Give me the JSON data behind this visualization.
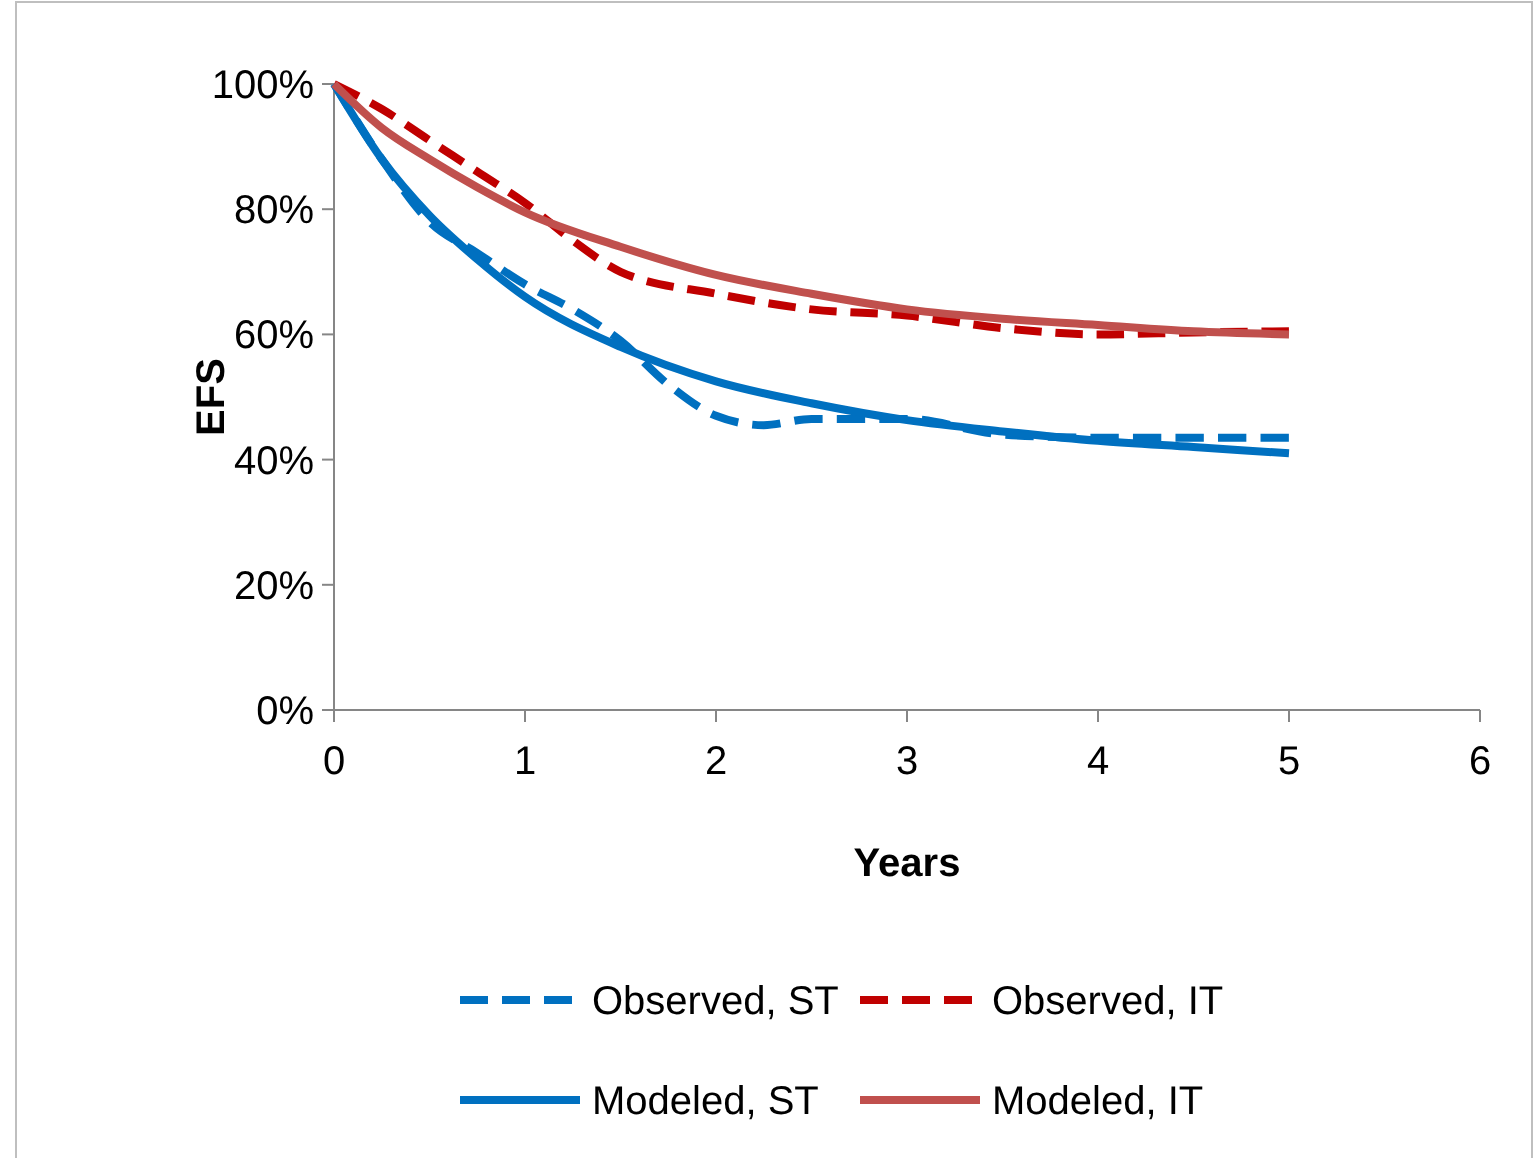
{
  "chart_data": {
    "type": "line",
    "xlabel": "Years",
    "ylabel": "EFS",
    "xlim": [
      0,
      6
    ],
    "xticks": [
      0,
      1,
      2,
      3,
      4,
      5,
      6
    ],
    "ylim": [
      0,
      100
    ],
    "yticks": [
      {
        "value": 0,
        "label": "0%"
      },
      {
        "value": 20,
        "label": "20%"
      },
      {
        "value": 40,
        "label": "40%"
      },
      {
        "value": 60,
        "label": "60%"
      },
      {
        "value": 80,
        "label": "80%"
      },
      {
        "value": 100,
        "label": "100%"
      }
    ],
    "legend": "bottom",
    "grid": false,
    "series": [
      {
        "name": "Observed, ST",
        "color": "#0070c0",
        "line_style": "dashed",
        "x": [
          0,
          0.25,
          0.5,
          0.75,
          1,
          1.25,
          1.5,
          1.75,
          2,
          2.25,
          2.5,
          3,
          3.5,
          4,
          4.5,
          5
        ],
        "values": [
          100,
          88,
          78,
          73,
          68,
          64,
          59,
          52,
          47,
          45.5,
          46.5,
          46.5,
          44,
          43.5,
          43.5,
          43.5
        ]
      },
      {
        "name": "Observed, IT",
        "color": "#c00000",
        "line_style": "dashed",
        "x": [
          0,
          0.25,
          0.5,
          0.75,
          1,
          1.25,
          1.5,
          2,
          2.5,
          3,
          3.5,
          4,
          4.5,
          5
        ],
        "values": [
          100,
          96,
          91,
          86,
          81,
          75,
          70,
          66.5,
          64,
          63,
          61,
          60,
          60.3,
          60.5
        ]
      },
      {
        "name": "Modeled, ST",
        "color": "#0070c0",
        "line_style": "solid",
        "x": [
          0,
          0.25,
          0.5,
          0.75,
          1,
          1.5,
          2,
          2.5,
          3,
          3.5,
          4,
          4.5,
          5
        ],
        "values": [
          100,
          88,
          79,
          72,
          66,
          58,
          52.5,
          49,
          46.3,
          44.5,
          43,
          42,
          41
        ]
      },
      {
        "name": "Modeled, IT",
        "color": "#c0504d",
        "line_style": "solid",
        "x": [
          0,
          0.25,
          0.5,
          0.75,
          1,
          1.5,
          2,
          2.5,
          3,
          3.5,
          4,
          4.5,
          5
        ],
        "values": [
          100,
          93,
          88,
          83.5,
          79.5,
          74,
          69.5,
          66.5,
          64,
          62.5,
          61.5,
          60.5,
          60
        ]
      }
    ]
  }
}
